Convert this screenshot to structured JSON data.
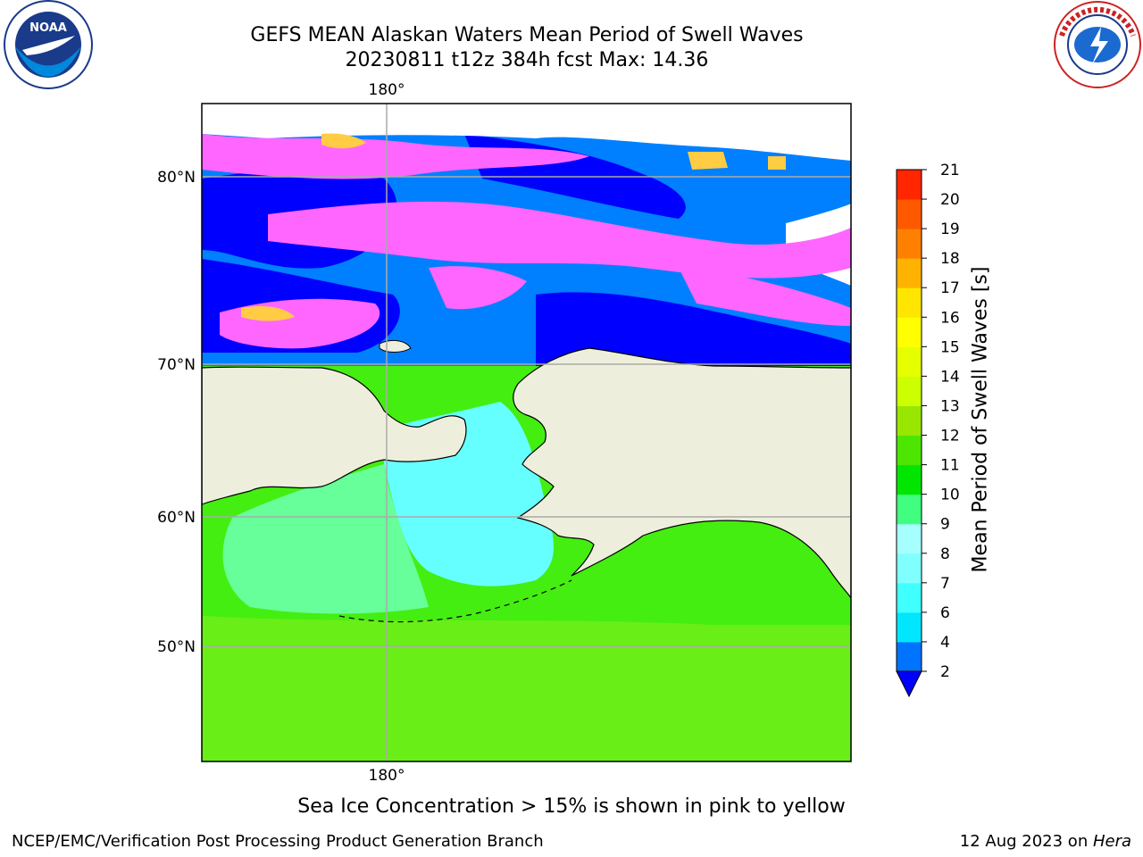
{
  "title_line1": "GEFS MEAN Alaskan Waters Mean Period of Swell Waves",
  "title_line2": "20230811 t12z 384h fcst   Max: 14.36",
  "map": {
    "lon_labels": [
      "180°",
      "180°"
    ],
    "lat_labels": [
      "80°N",
      "70°N",
      "60°N",
      "50°N"
    ]
  },
  "colorbar": {
    "title": "Mean Period of Swell Waves [s]",
    "ticks": [
      "2",
      "4",
      "6",
      "7",
      "8",
      "9",
      "10",
      "11",
      "12",
      "13",
      "14",
      "15",
      "16",
      "17",
      "18",
      "19",
      "20",
      "21"
    ],
    "colors": [
      "#0073ff",
      "#00e6ff",
      "#40ffff",
      "#80ffff",
      "#a6ffff",
      "#40ff80",
      "#00e600",
      "#4ce600",
      "#99e600",
      "#ccff00",
      "#e6ff00",
      "#ffff00",
      "#ffe600",
      "#ffb300",
      "#ff8000",
      "#ff5900",
      "#ff2600",
      "#ff0000"
    ],
    "under_color": "#0000ff"
  },
  "colors": {
    "land": "#eeeedd",
    "ice_pink": "#ff66ff",
    "ice_orange": "#ffcc44",
    "deep_blue": "#0000ff",
    "swell_blue": "#0080ff",
    "cyan": "#66ffff",
    "sea_green": "#66ff99",
    "green": "#44ee11",
    "yellow_green": "#99ee22"
  },
  "logos": {
    "left": "NOAA",
    "right": "NATIONAL WEATHER SERVICE"
  },
  "ice_note": "Sea Ice Concentration > 15% is shown in pink to yellow",
  "footer": {
    "left": "NCEP/EMC/Verification Post Processing Product Generation Branch",
    "right_date": "12 Aug 2023 on ",
    "right_host": "Hera"
  }
}
